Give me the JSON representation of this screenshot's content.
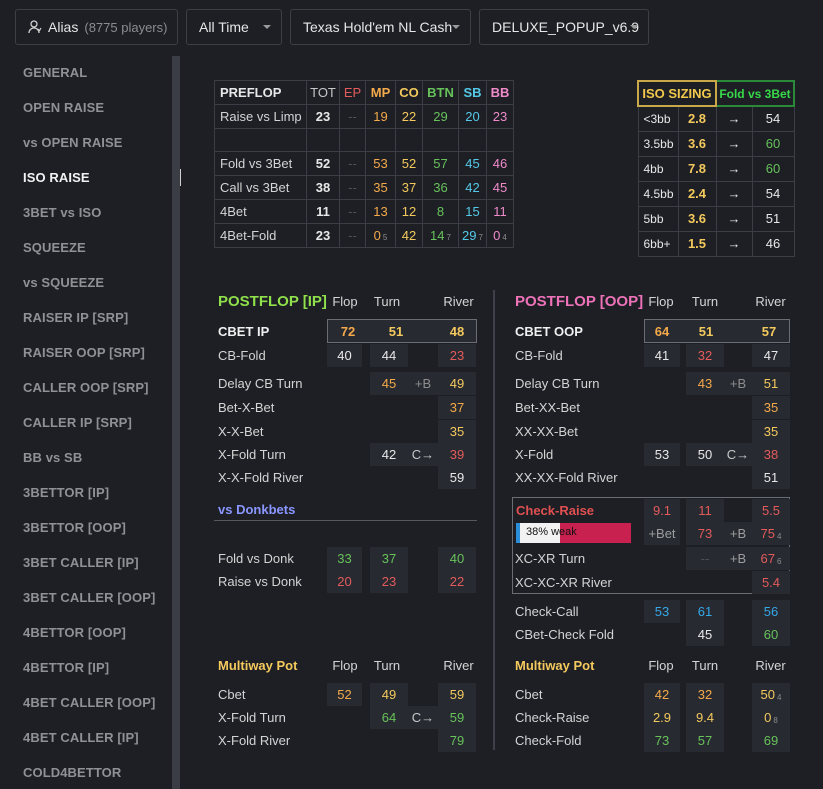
{
  "toolbar": {
    "alias_label": "Alias",
    "players": "(8775 players)",
    "time_filter": "All Time",
    "game_type": "Texas Hold'em NL Cash",
    "hud_profile": "DELUXE_POPUP_v6.9"
  },
  "sidebar": {
    "items": [
      "GENERAL",
      "OPEN RAISE",
      "vs OPEN RAISE",
      "ISO RAISE",
      "3BET vs ISO",
      "SQUEEZE",
      "vs SQUEEZE",
      "RAISER IP [SRP]",
      "RAISER OOP [SRP]",
      "CALLER OOP [SRP]",
      "CALLER IP [SRP]",
      "BB vs SB",
      "3BETTOR [IP]",
      "3BETTOR [OOP]",
      "3BET CALLER [IP]",
      "3BET CALLER [OOP]",
      "4BETTOR [OOP]",
      "4BETTOR [IP]",
      "4BET CALLER [OOP]",
      "4BET CALLER [IP]",
      "COLD4BETTOR"
    ],
    "active": "ISO RAISE"
  },
  "preflop": {
    "header": [
      "PREFLOP",
      "TOT",
      "EP",
      "MP",
      "CO",
      "BTN",
      "SB",
      "BB"
    ],
    "rows": [
      {
        "label": "Raise vs Limp",
        "vals": [
          "23",
          "--",
          "19",
          "22",
          "29",
          "20",
          "23"
        ],
        "subs": [
          "",
          "",
          "",
          "",
          "",
          "",
          ""
        ]
      },
      {
        "label": "",
        "vals": [
          "",
          "",
          "",
          "",
          "",
          "",
          ""
        ],
        "subs": [
          "",
          "",
          "",
          "",
          "",
          "",
          ""
        ]
      },
      {
        "label": "Fold vs 3Bet",
        "vals": [
          "52",
          "--",
          "53",
          "52",
          "57",
          "45",
          "46"
        ],
        "subs": [
          "",
          "",
          "",
          "",
          "",
          "",
          ""
        ]
      },
      {
        "label": "Call vs 3Bet",
        "vals": [
          "38",
          "--",
          "35",
          "37",
          "36",
          "42",
          "45"
        ],
        "subs": [
          "",
          "",
          "",
          "",
          "",
          "",
          ""
        ]
      },
      {
        "label": "4Bet",
        "vals": [
          "11",
          "--",
          "13",
          "12",
          "8",
          "15",
          "11"
        ],
        "subs": [
          "",
          "",
          "",
          "",
          "",
          "",
          ""
        ]
      },
      {
        "label": "4Bet-Fold",
        "vals": [
          "23",
          "--",
          "0",
          "42",
          "14",
          "29",
          "0"
        ],
        "subs": [
          "",
          "",
          "5",
          "",
          "7",
          "7",
          "4"
        ]
      }
    ]
  },
  "iso_sizing": {
    "header": "ISO SIZING",
    "header2": "Fold vs 3Bet",
    "arrow": "→",
    "rows": [
      {
        "size": "<3bb",
        "freq": "2.8",
        "fold": "54"
      },
      {
        "size": "3.5bb",
        "freq": "3.6",
        "fold": "60"
      },
      {
        "size": "4bb",
        "freq": "7.8",
        "fold": "60"
      },
      {
        "size": "4.5bb",
        "freq": "2.4",
        "fold": "54"
      },
      {
        "size": "5bb",
        "freq": "3.6",
        "fold": "51"
      },
      {
        "size": "6bb+",
        "freq": "1.5",
        "fold": "46"
      }
    ]
  },
  "postflop_ip": {
    "title": "POSTFLOP [IP]",
    "cols": [
      "Flop",
      "Turn",
      "River"
    ],
    "cbet": {
      "label": "CBET IP",
      "vals": [
        "72",
        "51",
        "48"
      ]
    },
    "cbfold": {
      "label": "CB-Fold",
      "vals": [
        "40",
        "44",
        "23"
      ]
    },
    "delay": {
      "label": "Delay CB Turn",
      "turn": "45",
      "mid": "+B",
      "river": "49"
    },
    "betxbet": {
      "label": "Bet-X-Bet",
      "river": "37"
    },
    "xxbet": {
      "label": "X-X-Bet",
      "river": "35"
    },
    "xfold": {
      "label": "X-Fold Turn",
      "turn": "42",
      "mid": "C→",
      "river": "39"
    },
    "xxfold": {
      "label": "X-X-Fold River",
      "river": "59"
    },
    "donk_title": "vs Donkbets",
    "folddonk": {
      "label": "Fold vs Donk",
      "vals": [
        "33",
        "37",
        "40"
      ]
    },
    "raisedonk": {
      "label": "Raise vs Donk",
      "vals": [
        "20",
        "23",
        "22"
      ]
    },
    "mw_title": "Multiway Pot",
    "mw_cbet": {
      "label": "Cbet",
      "vals": [
        "52",
        "49",
        "59"
      ]
    },
    "mw_xfold_turn": {
      "label": "X-Fold Turn",
      "turn": "64",
      "mid": "C→",
      "river": "59"
    },
    "mw_xfold_river": {
      "label": "X-Fold River",
      "river": "79"
    }
  },
  "postflop_oop": {
    "title": "POSTFLOP [OOP]",
    "cols": [
      "Flop",
      "Turn",
      "River"
    ],
    "cbet": {
      "label": "CBET OOP",
      "vals": [
        "64",
        "51",
        "57"
      ]
    },
    "cbfold": {
      "label": "CB-Fold",
      "vals": [
        "41",
        "32",
        "47"
      ]
    },
    "delay": {
      "label": "Delay CB Turn",
      "turn": "43",
      "mid": "+B",
      "river": "51"
    },
    "betxxbet": {
      "label": "Bet-XX-Bet",
      "river": "35"
    },
    "xxxxbet": {
      "label": "XX-XX-Bet",
      "river": "35"
    },
    "xfold": {
      "label": "X-Fold",
      "flop": "53",
      "turn": "50",
      "mid": "C→",
      "river": "38"
    },
    "xxxxfold": {
      "label": "XX-XX-Fold River",
      "river": "51"
    },
    "checkraise": {
      "label": "Check-Raise",
      "vals": [
        "9.1",
        "11",
        "5.5"
      ]
    },
    "weak": {
      "label": "38% weak",
      "pct": 38,
      "bet": "+Bet",
      "v1": "73",
      "mid": "+B",
      "v2": "75",
      "sub": "4"
    },
    "xcxr": {
      "label": "XC-XR Turn",
      "v1": "--",
      "mid": "+B",
      "v2": "67",
      "sub": "6"
    },
    "xcxcxr": {
      "label": "XC-XC-XR River",
      "v": "5.4"
    },
    "checkcall": {
      "label": "Check-Call",
      "vals": [
        "53",
        "61",
        "56"
      ]
    },
    "cbcheckfold": {
      "label": "CBet-Check Fold",
      "turn": "45",
      "river": "60"
    },
    "mw_title": "Multiway Pot",
    "mw_cbet": {
      "label": "Cbet",
      "vals": [
        "42",
        "32",
        "50"
      ],
      "sub": "4"
    },
    "mw_checkraise": {
      "label": "Check-Raise",
      "vals": [
        "2.9",
        "9.4",
        "0"
      ],
      "sub": "8"
    },
    "mw_checkfold": {
      "label": "Check-Fold",
      "vals": [
        "73",
        "57",
        "69"
      ]
    }
  },
  "colors": {
    "bg": "#1d1f25",
    "cell": "#272a31",
    "ip_title": "#8fe04a",
    "oop_title": "#ee72b8",
    "mw_title": "#f4c95d",
    "donk_title": "#8a96ff",
    "iso_header_bg": "#f2c94c",
    "fold3bet_header": "#1f9d3a",
    "checkraise": "#e05050"
  }
}
